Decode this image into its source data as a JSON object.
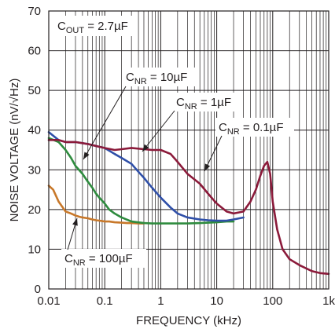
{
  "chart_data": {
    "type": "line",
    "title": "",
    "xlabel": "FREQUENCY (kHz)",
    "ylabel": "NOISE VOLTAGE (nV/√Hz)",
    "xscale": "log",
    "xlim": [
      0.01,
      1000
    ],
    "ylim": [
      0,
      70
    ],
    "grid": true,
    "x_ticks": [
      "0.01",
      "0.1",
      "1",
      "10",
      "100",
      "1k"
    ],
    "y_ticks": [
      "0",
      "10",
      "20",
      "30",
      "40",
      "50",
      "60",
      "70"
    ],
    "annotations": {
      "cout": {
        "main": "C",
        "sub": "OUT",
        "rest": " = 2.7µF"
      },
      "cnr_10": {
        "main": "C",
        "sub": "NR",
        "rest": " = 10µF"
      },
      "cnr_1": {
        "main": "C",
        "sub": "NR",
        "rest": " = 1µF"
      },
      "cnr_01": {
        "main": "C",
        "sub": "NR",
        "rest": " = 0.1µF"
      },
      "cnr_100": {
        "main": "C",
        "sub": "NR",
        "rest": " = 100µF"
      }
    },
    "colors": {
      "cnr_100uF": "#c8782a",
      "cnr_10uF": "#2e8b3e",
      "cnr_1uF": "#2f4fa8",
      "cnr_0.1uF": "#8b1a3a"
    },
    "series": [
      {
        "key": "cnr_100uF",
        "x": [
          0.01,
          0.012,
          0.015,
          0.02,
          0.025,
          0.03,
          0.035,
          0.04,
          0.05,
          0.06,
          0.07,
          0.08,
          0.1,
          0.12,
          0.15,
          0.2,
          0.25,
          0.3,
          0.4,
          0.5
        ],
        "y": [
          26,
          25,
          22,
          19.5,
          19,
          18.5,
          18.2,
          18,
          17.8,
          17.5,
          17.3,
          17.2,
          17,
          17,
          16.8,
          16.7,
          16.6,
          16.6,
          16.5,
          16.5
        ]
      },
      {
        "key": "cnr_10uF",
        "x": [
          0.01,
          0.015,
          0.02,
          0.025,
          0.03,
          0.04,
          0.05,
          0.06,
          0.07,
          0.08,
          0.1,
          0.12,
          0.15,
          0.2,
          0.3,
          0.5,
          0.7,
          1,
          2,
          3,
          5,
          10,
          15,
          20
        ],
        "y": [
          38,
          37,
          35,
          33,
          31,
          29,
          27,
          25.5,
          24,
          23,
          21.5,
          20,
          19,
          18,
          17,
          16.6,
          16.5,
          16.5,
          16.5,
          16.5,
          16.6,
          16.8,
          17,
          17
        ]
      },
      {
        "key": "cnr_1uF",
        "x": [
          0.01,
          0.015,
          0.02,
          0.03,
          0.05,
          0.07,
          0.1,
          0.15,
          0.2,
          0.3,
          0.4,
          0.5,
          0.7,
          1,
          1.5,
          2,
          3,
          5,
          7,
          10,
          15,
          20,
          30
        ],
        "y": [
          39.5,
          37.5,
          37,
          37,
          36.5,
          36,
          35.5,
          34,
          33,
          31.5,
          29.5,
          28,
          25.5,
          23,
          20.5,
          19,
          18,
          17.5,
          17.3,
          17.2,
          17.2,
          17.5,
          18
        ]
      },
      {
        "key": "cnr_0.1uF",
        "x": [
          0.01,
          0.015,
          0.02,
          0.03,
          0.05,
          0.07,
          0.1,
          0.15,
          0.2,
          0.3,
          0.5,
          0.7,
          1,
          1.5,
          2,
          3,
          5,
          7,
          10,
          15,
          20,
          30,
          40,
          50,
          60,
          70,
          80,
          90,
          100,
          120,
          150,
          200,
          300,
          500,
          700,
          1000
        ],
        "y": [
          37.5,
          37.5,
          37,
          37,
          36.5,
          36,
          35.5,
          35,
          35.2,
          35.5,
          35.2,
          35,
          35,
          34,
          32,
          29,
          26.5,
          24,
          21.5,
          19.5,
          19,
          19.5,
          22,
          25,
          28.5,
          31,
          32,
          29,
          22,
          15,
          10,
          7.5,
          6,
          4.5,
          4,
          3.8
        ]
      }
    ]
  }
}
